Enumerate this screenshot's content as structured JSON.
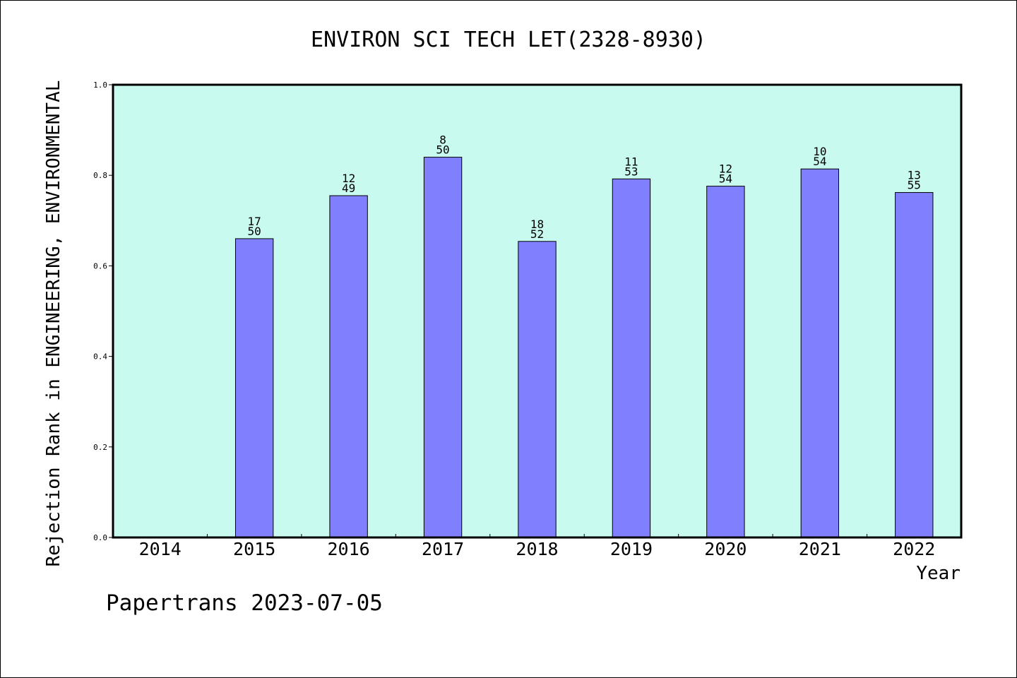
{
  "chart_data": {
    "type": "bar",
    "title": "ENVIRON SCI TECH LET(2328-8930)",
    "xlabel": "Year",
    "ylabel": "Rejection Rank in ENGINEERING, ENVIRONMENTAL",
    "ylim": [
      0,
      1
    ],
    "yticks": [
      "0.0",
      "0.2",
      "0.4",
      "0.6",
      "0.8",
      "1.0"
    ],
    "categories": [
      "2014",
      "2015",
      "2016",
      "2017",
      "2018",
      "2019",
      "2020",
      "2021",
      "2022"
    ],
    "values": [
      null,
      0.66,
      0.755,
      0.84,
      0.654,
      0.792,
      0.776,
      0.814,
      0.762
    ],
    "labels": [
      null,
      {
        "rank": "17",
        "total": "50"
      },
      {
        "rank": "12",
        "total": "49"
      },
      {
        "rank": "8",
        "total": "50"
      },
      {
        "rank": "18",
        "total": "52"
      },
      {
        "rank": "11",
        "total": "53"
      },
      {
        "rank": "12",
        "total": "54"
      },
      {
        "rank": "10",
        "total": "54"
      },
      {
        "rank": "13",
        "total": "55"
      }
    ],
    "grid": false,
    "colors": {
      "plot_background": "#c8faf0",
      "bar_fill": "#8080ff",
      "bar_stroke": "#000000"
    }
  },
  "footer": {
    "text": "Papertrans 2023-07-05"
  }
}
